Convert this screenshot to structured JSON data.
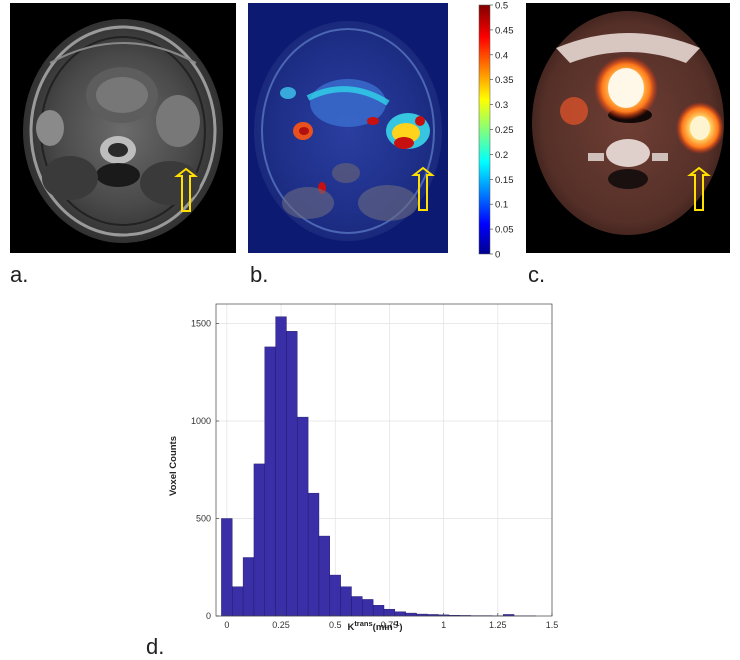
{
  "panels": {
    "a": {
      "label": "a."
    },
    "b": {
      "label": "b.",
      "colorbar_ticks": [
        "0.5",
        "0.45",
        "0.4",
        "0.35",
        "0.3",
        "0.25",
        "0.2",
        "0.15",
        "0.1",
        "0.05",
        "0"
      ]
    },
    "c": {
      "label": "c."
    },
    "d": {
      "label": "d."
    }
  },
  "colors": {
    "bar_fill": "#3b2fa8",
    "arrow": "#ffe000"
  },
  "chart_data": {
    "type": "bar",
    "title": "",
    "xlabel_main": "K",
    "xlabel_sup": "trans",
    "xlabel_unit": "(min",
    "xlabel_unit_sup": "-1",
    "xlabel_close": ")",
    "ylabel": "Voxel Counts",
    "xlim": [
      -0.05,
      1.5
    ],
    "ylim": [
      0,
      1600
    ],
    "xticks": [
      0,
      0.25,
      0.5,
      0.75,
      1,
      1.25,
      1.5
    ],
    "xtick_labels": [
      "0",
      "0.25",
      "0.5",
      "0.75",
      "1",
      "1.25",
      "1.5"
    ],
    "yticks": [
      0,
      500,
      1000,
      1500
    ],
    "ytick_labels": [
      "0",
      "500",
      "1000",
      "1500"
    ],
    "grid": true,
    "bin_width": 0.05,
    "bin_centers": [
      0,
      0.05,
      0.1,
      0.15,
      0.2,
      0.25,
      0.3,
      0.35,
      0.4,
      0.45,
      0.5,
      0.55,
      0.6,
      0.65,
      0.7,
      0.75,
      0.8,
      0.85,
      0.9,
      0.95,
      1.0,
      1.05,
      1.1,
      1.15,
      1.2,
      1.25,
      1.3,
      1.35,
      1.4
    ],
    "values": [
      500,
      150,
      300,
      780,
      1380,
      1535,
      1460,
      1020,
      630,
      410,
      210,
      150,
      100,
      85,
      55,
      35,
      22,
      15,
      10,
      8,
      6,
      4,
      3,
      2,
      2,
      1,
      8,
      1,
      1
    ]
  }
}
